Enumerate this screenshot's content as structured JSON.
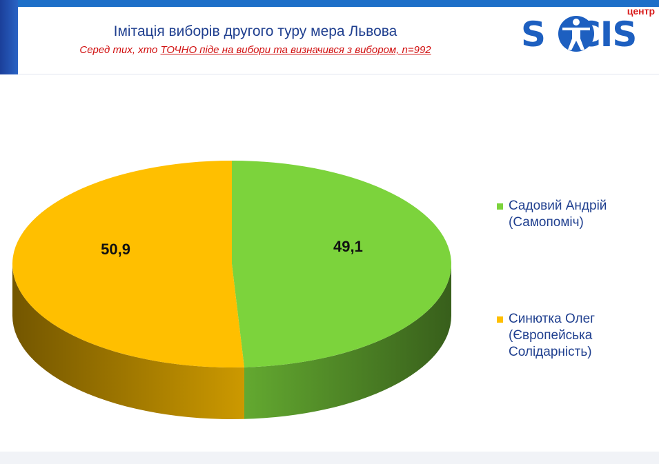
{
  "header": {
    "title": "Імітація виборів другого туру мера Львова",
    "subtitle_prefix": "Серед тих, хто ",
    "subtitle_emph": "ТОЧНО піде на вибори та визначився з вибором, n=992"
  },
  "logo": {
    "small_text": "центр",
    "word": "SOCIS"
  },
  "colors": {
    "accent": "#1e6fc8",
    "title": "#1f3f8f",
    "subtitle": "#d11010",
    "green": "#7cd33c",
    "yellow": "#ffbf00"
  },
  "chart_data": {
    "type": "pie",
    "three_d": true,
    "legend_position": "right",
    "categories": [
      "Садовий Андрій (Самопоміч)",
      "Синютка Олег (Європейська Солідарність)"
    ],
    "values": [
      49.1,
      50.9
    ],
    "value_labels": [
      "49,1",
      "50,9"
    ],
    "colors": [
      "#7cd33c",
      "#ffbf00"
    ]
  },
  "legend": [
    {
      "lines": [
        "Садовий Андрій",
        "(Самопоміч)"
      ],
      "color": "#7cd33c"
    },
    {
      "lines": [
        "Синютка Олег",
        "(Європейська",
        "Солідарність)"
      ],
      "color": "#ffbf00"
    }
  ]
}
